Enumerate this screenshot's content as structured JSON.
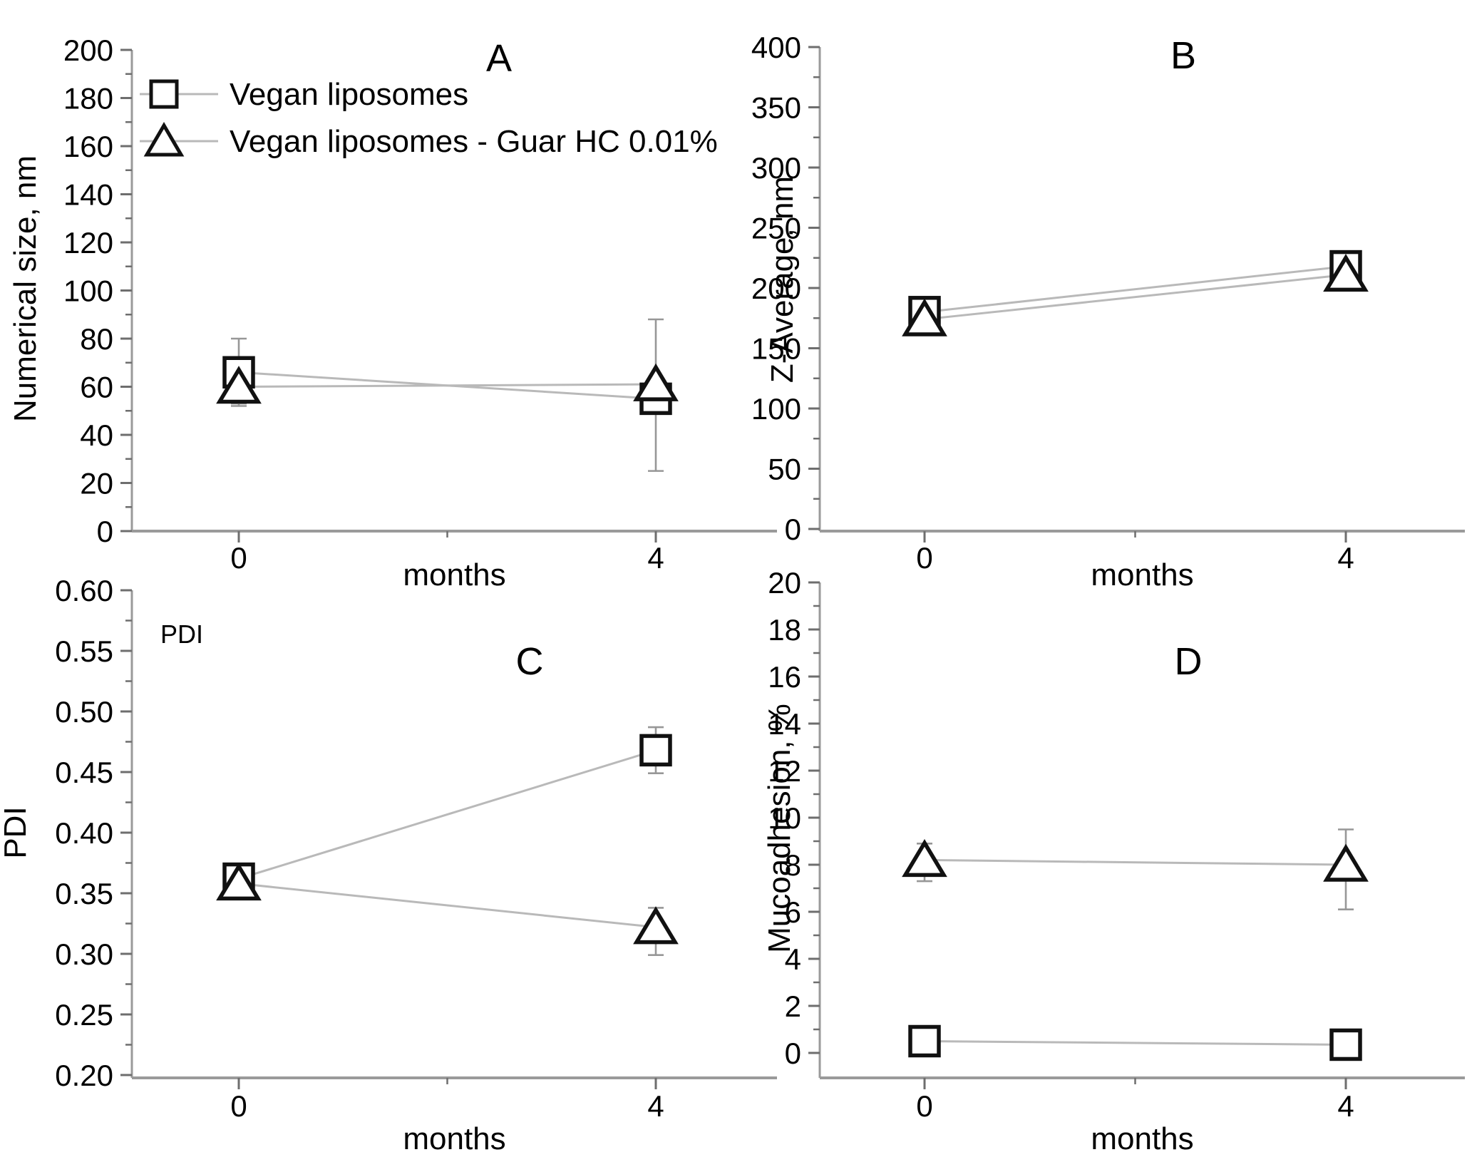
{
  "figure": {
    "legend": {
      "items": [
        {
          "marker": "square",
          "label": "Vegan liposomes"
        },
        {
          "marker": "triangle",
          "label": "Vegan liposomes - Guar HC 0.01%"
        }
      ]
    },
    "xlabel": "months",
    "x_tick_labels": [
      "0",
      "4"
    ],
    "colors": {
      "marker_stroke": "#111111",
      "marker_fill": "#ffffff",
      "series_line": "#b9b9b9",
      "error_bar": "#979797",
      "axis_line": "#9a9a9a",
      "tick": "#6e6e6e",
      "text": "#000000"
    }
  },
  "chart_data": [
    {
      "id": "A",
      "type": "line",
      "panel_label": "A",
      "ylabel": "Numerical size, nm",
      "xlabel": "months",
      "x_tick_labels": [
        "0",
        "4"
      ],
      "x_values": [
        0,
        4
      ],
      "ylim": [
        0,
        200
      ],
      "ytick_step": 20,
      "ytick_decimals": 0,
      "annotation": "",
      "series": [
        {
          "name": "Vegan liposomes",
          "marker": "square",
          "values": [
            66,
            55
          ],
          "err_lo": [
            13,
            4
          ],
          "err_hi": [
            14,
            4
          ]
        },
        {
          "name": "Vegan liposomes - Guar HC 0.01%",
          "marker": "triangle",
          "values": [
            60,
            61
          ],
          "err_lo": [
            8,
            36
          ],
          "err_hi": [
            8,
            27
          ]
        }
      ]
    },
    {
      "id": "B",
      "type": "line",
      "panel_label": "B",
      "ylabel": "Z-Average, nm",
      "xlabel": "months",
      "x_tick_labels": [
        "0",
        "4"
      ],
      "x_values": [
        0,
        4
      ],
      "ylim": [
        0,
        400
      ],
      "ytick_step": 50,
      "ytick_decimals": 0,
      "annotation": "",
      "series": [
        {
          "name": "Vegan liposomes",
          "marker": "square",
          "values": [
            180,
            218
          ],
          "err_lo": [
            8,
            6
          ],
          "err_hi": [
            9,
            8
          ]
        },
        {
          "name": "Vegan liposomes - Guar HC 0.01%",
          "marker": "triangle",
          "values": [
            174,
            211
          ],
          "err_lo": [
            11,
            10
          ],
          "err_hi": [
            8,
            6
          ]
        }
      ]
    },
    {
      "id": "C",
      "type": "line",
      "panel_label": "C",
      "ylabel": "PDI",
      "xlabel": "months",
      "x_tick_labels": [
        "0",
        "4"
      ],
      "x_values": [
        0,
        4
      ],
      "ylim": [
        0.2,
        0.6
      ],
      "ytick_step": 0.05,
      "ytick_decimals": 2,
      "annotation": "PDI",
      "series": [
        {
          "name": "Vegan liposomes",
          "marker": "square",
          "values": [
            0.362,
            0.468
          ],
          "err_lo": [
            0.008,
            0.019
          ],
          "err_hi": [
            0.008,
            0.019
          ]
        },
        {
          "name": "Vegan liposomes - Guar HC 0.01%",
          "marker": "triangle",
          "values": [
            0.358,
            0.322
          ],
          "err_lo": [
            0.012,
            0.023
          ],
          "err_hi": [
            0.008,
            0.016
          ]
        }
      ]
    },
    {
      "id": "D",
      "type": "line",
      "panel_label": "D",
      "ylabel": "Mucoadhesion, %",
      "xlabel": "months",
      "x_tick_labels": [
        "0",
        "4"
      ],
      "x_values": [
        0,
        4
      ],
      "ylim": [
        0,
        20
      ],
      "ytick_step": 2,
      "ytick_decimals": 0,
      "annotation": "",
      "series": [
        {
          "name": "Vegan liposomes",
          "marker": "square",
          "values": [
            0.5,
            0.35
          ],
          "err_lo": [
            0,
            0
          ],
          "err_hi": [
            0,
            0
          ]
        },
        {
          "name": "Vegan liposomes - Guar HC 0.01%",
          "marker": "triangle",
          "values": [
            8.2,
            8.0
          ],
          "err_lo": [
            0.9,
            1.9
          ],
          "err_hi": [
            0.7,
            1.5
          ]
        }
      ]
    }
  ]
}
